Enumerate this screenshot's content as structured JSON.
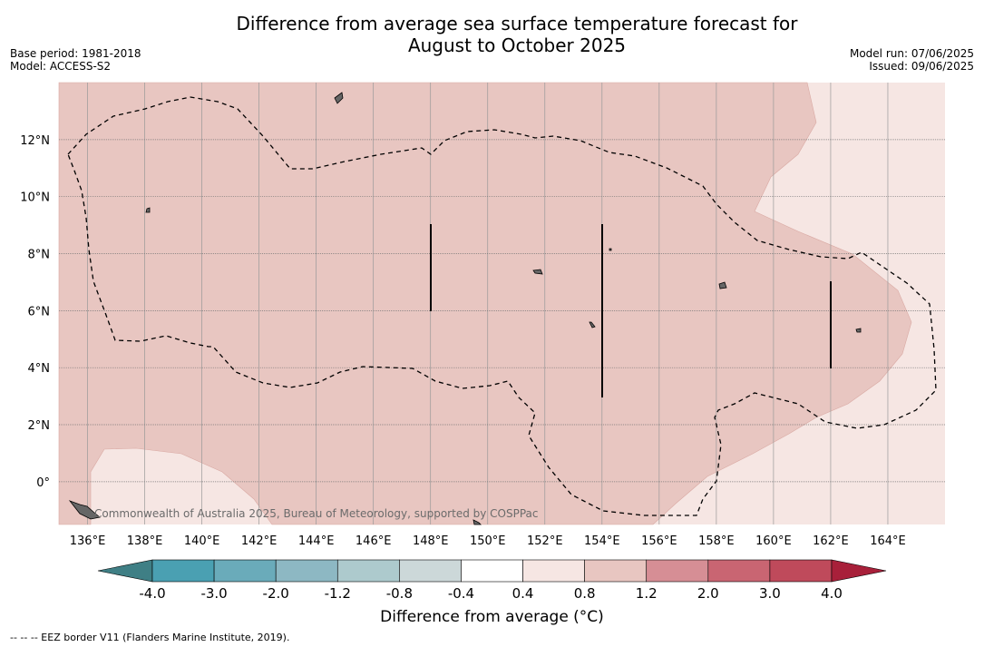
{
  "title_line1": "Difference from average sea surface temperature forecast for",
  "title_line2": "August to October 2025",
  "base_period": "Base period: 1981-2018",
  "model": "Model: ACCESS-S2",
  "model_run": "Model run: 07/06/2025",
  "issued": "Issued: 09/06/2025",
  "attribution": "Commonwealth of Australia 2025, Bureau of Meteorology, supported by COSPPac",
  "footnote": "--  --  -- EEZ border V11 (Flanders Marine Institute, 2019).",
  "colorbar": {
    "title": "Difference from average ($^\\circ$C)",
    "title_display": "Difference from average (°C)",
    "tick_labels": [
      "-4.0",
      "-3.0",
      "-2.0",
      "-1.2",
      "-0.8",
      "-0.4",
      "0.4",
      "0.8",
      "1.2",
      "2.0",
      "3.0",
      "4.0"
    ],
    "colors": [
      "#3f7f85",
      "#4aa0b2",
      "#6aabba",
      "#8db8c3",
      "#adcacd",
      "#ccd8d9",
      "#ffffff",
      "#f6e6e3",
      "#e8c6c1",
      "#d68e95",
      "#c96572",
      "#bf4a5b",
      "#a8203a"
    ]
  },
  "map": {
    "lat_labels": [
      "12°N",
      "10°N",
      "8°N",
      "6°N",
      "4°N",
      "2°N",
      "0°"
    ],
    "lon_labels": [
      "136°E",
      "138°E",
      "140°E",
      "142°E",
      "144°E",
      "146°E",
      "148°E",
      "150°E",
      "152°E",
      "154°E",
      "156°E",
      "158°E",
      "160°E",
      "162°E",
      "164°E"
    ],
    "lon_range": [
      135,
      166
    ],
    "lat_range": [
      -1.5,
      14
    ],
    "fill_main": "#e8c6c1",
    "fill_light": "#f6e6e3"
  }
}
